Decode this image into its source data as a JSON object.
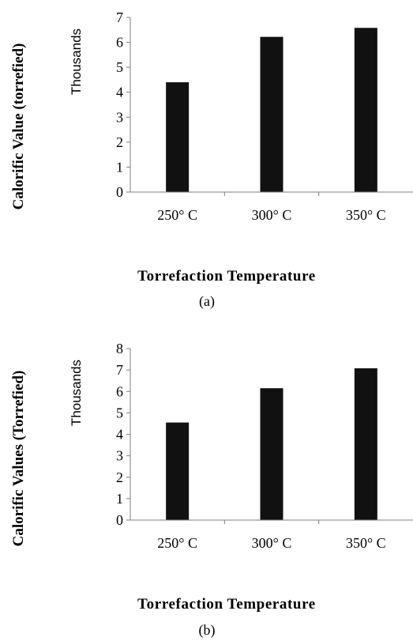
{
  "chart_data": [
    {
      "type": "bar",
      "categories": [
        "250° C",
        "300° C",
        "350° C"
      ],
      "values": [
        4.4,
        6.22,
        6.58
      ],
      "ylim": [
        0,
        7
      ],
      "yticks": [
        0,
        1,
        2,
        3,
        4,
        5,
        6,
        7
      ],
      "ylabel": "Calorific Value (torrefied)",
      "yunit_label": "Thousands",
      "xlabel": "Torrefaction Temperature",
      "caption": "(a)",
      "grid": false,
      "legend": "none",
      "bar_color": "#111111"
    },
    {
      "type": "bar",
      "categories": [
        "250° C",
        "300° C",
        "350° C"
      ],
      "values": [
        4.55,
        6.15,
        7.08
      ],
      "ylim": [
        0,
        8
      ],
      "yticks": [
        0,
        1,
        2,
        3,
        4,
        5,
        6,
        7,
        8
      ],
      "ylabel": "Calorific Values (Torrefied)",
      "yunit_label": "Thousands",
      "xlabel": "Torrefaction Temperature",
      "caption": "(b)",
      "grid": false,
      "legend": "none",
      "bar_color": "#111111"
    }
  ]
}
